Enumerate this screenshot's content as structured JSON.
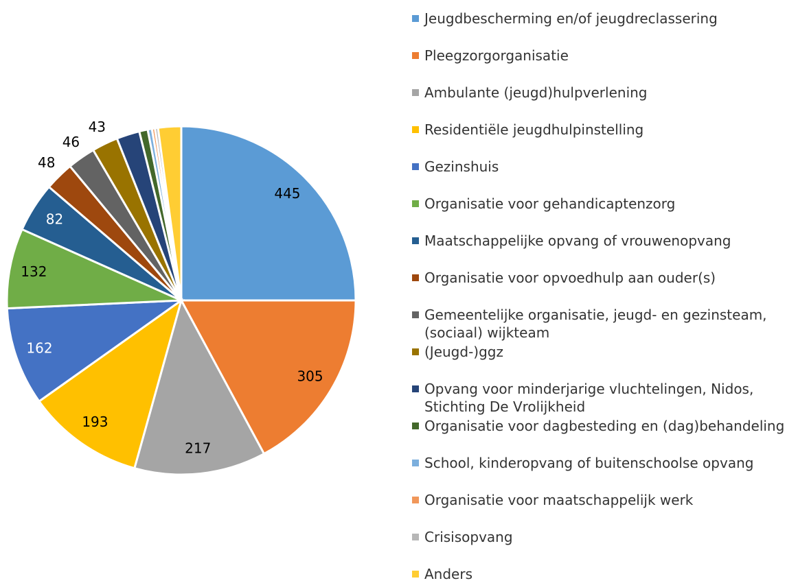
{
  "chart_data": {
    "type": "pie",
    "categories": [
      "Jeugdbescherming en/of jeugdreclassering",
      "Pleegzorgorganisatie",
      "Ambulante (jeugd)hulpverlening",
      "Residentiële jeugdhulpinstelling",
      "Gezinshuis",
      "Organisatie voor gehandicaptenzorg",
      "Maatschappelijke opvang of vrouwenopvang",
      "Organisatie voor opvoedhulp aan ouder(s)",
      "Gemeentelijke organisatie, jeugd- en gezinsteam, (sociaal) wijkteam",
      "(Jeugd-)ggz",
      "Opvang voor minderjarige vluchtelingen, Nidos, Stichting De Vrolijkheid",
      "Organisatie voor dagbesteding en (dag)behandeling",
      "School, kinderopvang of buitenschoolse opvang",
      "Organisatie voor maatschappelijk werk",
      "Crisisopvang",
      "Anders"
    ],
    "values": [
      445,
      305,
      217,
      193,
      162,
      132,
      82,
      48,
      46,
      43,
      38,
      14,
      7,
      5,
      5,
      38
    ],
    "value_labels": [
      "445",
      "305",
      "217",
      "193",
      "162",
      "132",
      "82",
      "48",
      "46",
      "43",
      null,
      null,
      null,
      null,
      null,
      null
    ],
    "colors": [
      "#5b9bd5",
      "#ed7d31",
      "#a5a5a5",
      "#ffc000",
      "#4472c4",
      "#70ad47",
      "#255e91",
      "#9e480e",
      "#636363",
      "#997300",
      "#264478",
      "#43682b",
      "#7cafdd",
      "#f1975a",
      "#b7b7b7",
      "#ffcd33"
    ],
    "legend": "right"
  }
}
